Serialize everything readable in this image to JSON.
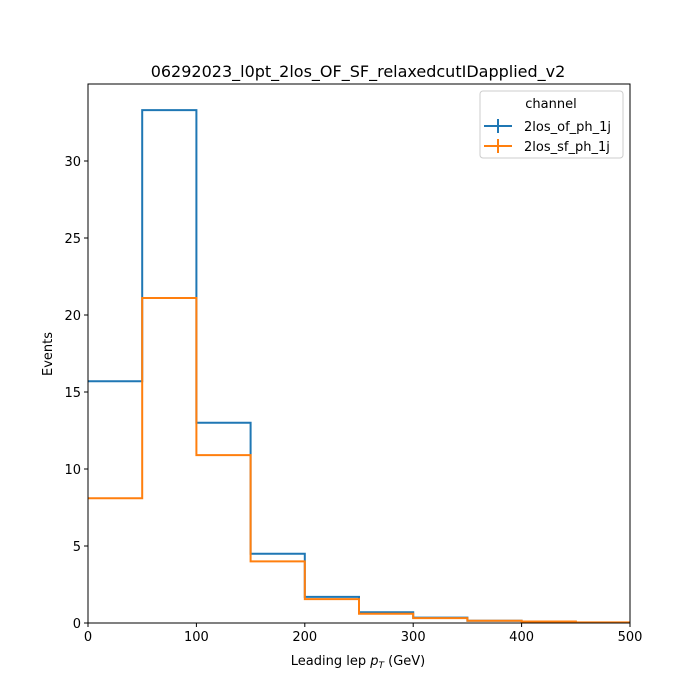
{
  "chart_data": {
    "type": "histogram-step",
    "title": "06292023_l0pt_2los_OF_SF_relaxedcutIDapplied_v2",
    "xlabel_main": "Leading lep ",
    "xlabel_p": "p",
    "xlabel_sub": "T",
    "xlabel_unit": " (GeV)",
    "ylabel": "Events",
    "xlim": [
      0,
      500
    ],
    "ylim": [
      0,
      35
    ],
    "x_ticks": [
      0,
      100,
      200,
      300,
      400,
      500
    ],
    "y_ticks": [
      0,
      5,
      10,
      15,
      20,
      25,
      30
    ],
    "bin_edges": [
      0,
      50,
      100,
      150,
      200,
      250,
      300,
      350,
      400,
      450,
      500
    ],
    "legend": {
      "title": "channel",
      "position": "top-right"
    },
    "series": [
      {
        "name": "2los_of_ph_1j",
        "color": "#1f77b4",
        "values": [
          15.7,
          33.3,
          13.0,
          4.5,
          1.7,
          0.7,
          0.35,
          0.15,
          0.08,
          0.03
        ]
      },
      {
        "name": "2los_sf_ph_1j",
        "color": "#ff7f0e",
        "values": [
          8.1,
          21.1,
          10.9,
          4.0,
          1.55,
          0.6,
          0.32,
          0.15,
          0.1,
          0.04
        ]
      }
    ]
  }
}
